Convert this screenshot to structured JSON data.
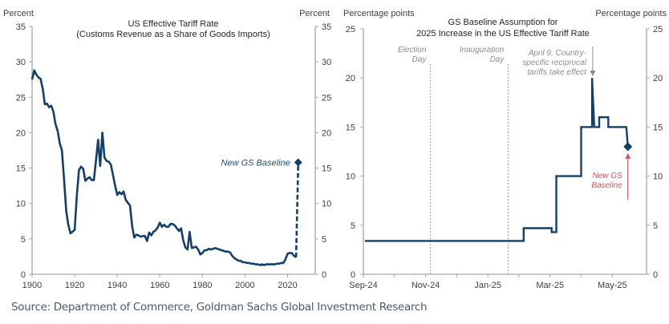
{
  "colors": {
    "line": "#12406b",
    "axis": "#a6a6a6",
    "annotation_red": "#d9535b",
    "annotation_gray": "#8c8c8c"
  },
  "source": "Source: Department of Commerce, Goldman Sachs Global Investment Research",
  "chart_data": [
    {
      "type": "line",
      "title": "US Effective Tariff Rate",
      "subtitle": "(Customs Revenue  as a Share of Goods Imports)",
      "ylabel_left": "Percent",
      "ylabel_right": "Percent",
      "xlabel": "",
      "xlim": [
        1900,
        2033
      ],
      "ylim": [
        0,
        35
      ],
      "x_ticks": [
        1900,
        1920,
        1940,
        1960,
        1980,
        2000,
        2020
      ],
      "y_ticks": [
        0,
        5,
        10,
        15,
        20,
        25,
        30,
        35
      ],
      "grid": false,
      "series": [
        {
          "name": "US Effective Tariff Rate",
          "style": "solid",
          "x": [
            1900,
            1901,
            1902,
            1903,
            1904,
            1905,
            1906,
            1907,
            1908,
            1909,
            1910,
            1911,
            1912,
            1913,
            1914,
            1915,
            1916,
            1917,
            1918,
            1919,
            1920,
            1921,
            1922,
            1923,
            1924,
            1925,
            1926,
            1927,
            1928,
            1929,
            1930,
            1931,
            1932,
            1933,
            1934,
            1935,
            1936,
            1937,
            1938,
            1939,
            1940,
            1941,
            1942,
            1943,
            1944,
            1945,
            1946,
            1947,
            1948,
            1949,
            1950,
            1951,
            1952,
            1953,
            1954,
            1955,
            1956,
            1957,
            1958,
            1959,
            1960,
            1961,
            1962,
            1963,
            1964,
            1965,
            1966,
            1967,
            1968,
            1969,
            1970,
            1971,
            1972,
            1973,
            1974,
            1975,
            1976,
            1977,
            1978,
            1979,
            1980,
            1981,
            1982,
            1983,
            1984,
            1985,
            1986,
            1987,
            1988,
            1989,
            1990,
            1991,
            1992,
            1993,
            1994,
            1995,
            1996,
            1997,
            1998,
            1999,
            2000,
            2001,
            2002,
            2003,
            2004,
            2005,
            2006,
            2007,
            2008,
            2009,
            2010,
            2011,
            2012,
            2013,
            2014,
            2015,
            2016,
            2017,
            2018,
            2019,
            2020,
            2021,
            2022,
            2023,
            2024
          ],
          "values": [
            27.5,
            28.8,
            28.2,
            27.8,
            27.6,
            26.2,
            24.0,
            24.1,
            23.6,
            23.8,
            23.0,
            21.2,
            20.3,
            18.5,
            17.5,
            13.5,
            9.0,
            7.0,
            5.8,
            6.0,
            6.3,
            11.0,
            14.7,
            15.2,
            14.9,
            13.2,
            13.5,
            13.7,
            13.3,
            13.3,
            16.0,
            19.0,
            15.3,
            20.0,
            16.5,
            16.0,
            15.9,
            15.5,
            14.0,
            12.5,
            11.2,
            11.6,
            11.3,
            11.7,
            10.5,
            10.1,
            9.7,
            6.8,
            5.2,
            5.6,
            5.5,
            5.3,
            5.4,
            5.4,
            4.7,
            5.9,
            5.5,
            6.0,
            6.2,
            6.6,
            7.3,
            6.7,
            7.0,
            6.7,
            6.7,
            7.1,
            7.1,
            6.9,
            6.5,
            6.1,
            6.5,
            4.8,
            3.8,
            3.5,
            6.0,
            3.7,
            3.8,
            3.9,
            3.5,
            2.8,
            3.0,
            3.4,
            3.4,
            3.6,
            3.5,
            3.6,
            3.7,
            3.6,
            3.5,
            3.4,
            3.3,
            3.2,
            3.2,
            3.1,
            2.6,
            2.3,
            2.1,
            1.9,
            1.9,
            1.7,
            1.7,
            1.6,
            1.6,
            1.5,
            1.5,
            1.4,
            1.4,
            1.3,
            1.4,
            1.3,
            1.4,
            1.4,
            1.4,
            1.4,
            1.4,
            1.5,
            1.5,
            1.6,
            1.6,
            2.1,
            2.9,
            3.0,
            3.0,
            2.6,
            2.4
          ]
        },
        {
          "name": "New GS Baseline",
          "style": "dashed",
          "x": [
            2024,
            2025
          ],
          "values": [
            2.4,
            15.8
          ],
          "marker_end": "diamond"
        }
      ],
      "annotations": [
        {
          "text": "New GS Baseline",
          "x": 2025,
          "y": 15.8
        }
      ]
    },
    {
      "type": "line",
      "title": "GS Baseline Assumption for",
      "subtitle": "2025 Increase in the US Effective Tariff Rate",
      "ylabel_left": "Percentage points",
      "ylabel_right": "Percentage points",
      "xlabel": "",
      "x_units": "months since 2024-09-01",
      "xlim": [
        0,
        9.1
      ],
      "ylim": [
        0,
        25
      ],
      "x_ticks": [
        0,
        2,
        4,
        6,
        8
      ],
      "x_tick_labels": [
        "Sep-24",
        "Nov-24",
        "Jan-25",
        "Mar-25",
        "May-25"
      ],
      "x_minor_ticks": [
        1,
        3,
        5,
        7
      ],
      "y_ticks": [
        0,
        5,
        10,
        15,
        20,
        25
      ],
      "grid": false,
      "series": [
        {
          "name": "GS Baseline Assumption",
          "style": "step",
          "x": [
            0.05,
            5.15,
            5.15,
            6.05,
            6.05,
            6.2,
            6.2,
            7.0,
            7.0,
            7.35,
            7.35,
            7.42,
            7.42,
            7.58,
            7.58,
            7.87,
            7.87,
            8.45,
            8.45,
            8.5
          ],
          "values": [
            3.4,
            3.4,
            4.7,
            4.7,
            4.3,
            4.3,
            10.0,
            10.0,
            15.0,
            15.0,
            20.0,
            15.0,
            15.0,
            15.0,
            16.0,
            16.0,
            15.0,
            15.0,
            15.0,
            13.0
          ],
          "marker_end": "diamond"
        }
      ],
      "vlines": [
        {
          "label_lines": [
            "Election",
            "Day"
          ],
          "x": 2.15
        },
        {
          "label_lines": [
            "Inauguration",
            "Day"
          ],
          "x": 4.65
        }
      ],
      "annotations": [
        {
          "text_lines": [
            "April 9, Country-",
            "specific reciprocal",
            "tariffs take effect"
          ],
          "target_x": 7.37,
          "target_y": 20,
          "color": "gray"
        },
        {
          "text_lines": [
            "New GS",
            "Baseline"
          ],
          "target_x": 8.5,
          "target_y": 13,
          "color": "red"
        }
      ]
    }
  ]
}
